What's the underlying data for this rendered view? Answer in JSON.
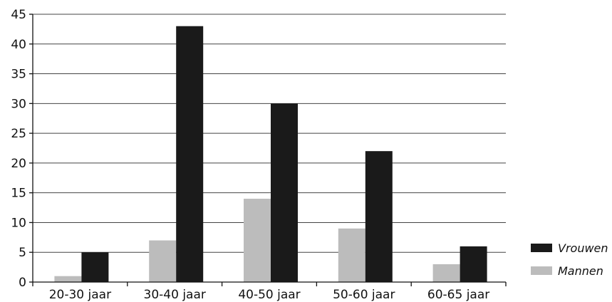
{
  "chart_data": {
    "type": "bar",
    "title": "",
    "xlabel": "",
    "ylabel": "",
    "categories": [
      "20-30 jaar",
      "30-40 jaar",
      "40-50 jaar",
      "50-60 jaar",
      "60-65 jaar"
    ],
    "series": [
      {
        "name": "Mannen",
        "values": [
          1,
          7,
          14,
          9,
          3
        ],
        "color": "#bcbcbc"
      },
      {
        "name": "Vrouwen",
        "values": [
          5,
          43,
          30,
          22,
          6
        ],
        "color": "#1a1a1a"
      }
    ],
    "ylim": [
      0,
      45
    ],
    "yticks": [
      "0",
      "5",
      "10",
      "15",
      "20",
      "25",
      "30",
      "35",
      "40",
      "45"
    ],
    "grid": true,
    "legend": {
      "placement": "right",
      "entries": [
        {
          "name": "Vrouwen",
          "color": "#1a1a1a"
        },
        {
          "name": "Mannen",
          "color": "#bcbcbc"
        }
      ]
    }
  }
}
